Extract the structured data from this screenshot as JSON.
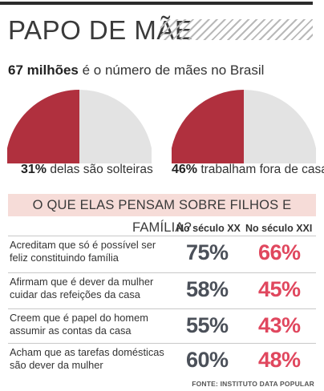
{
  "header": {
    "title": "PAPO DE MÃE"
  },
  "lead": {
    "bold": "67 milhões",
    "rest": " é o número de mães no Brasil"
  },
  "colors": {
    "accent": "#b0303e",
    "rest": "#e3e3e3",
    "xx": "#4b5059",
    "xxi": "#e0475e",
    "band": "#f6dcd8"
  },
  "pies": [
    {
      "value_bold": "31%",
      "text": " delas são solteiras",
      "percent": 31
    },
    {
      "value_bold": "46%",
      "text": " trabalham fora de casa",
      "percent": 46
    }
  ],
  "section": {
    "title": "O QUE ELAS PENSAM SOBRE FILHOS E FAMÍLIA?",
    "col_xx": "No século XX",
    "col_xxi": "No século XXI"
  },
  "rows": [
    {
      "label": "Acreditam que só é possível ser feliz constituindo família",
      "xx": "75%",
      "xxi": "66%"
    },
    {
      "label": "Afirmam que é dever da mulher cuidar das refeições da casa",
      "xx": "58%",
      "xxi": "45%"
    },
    {
      "label": "Creem que é papel do homem assumir as contas da casa",
      "xx": "55%",
      "xxi": "43%"
    },
    {
      "label": "Acham que as tarefas domésticas são dever da mulher",
      "xx": "60%",
      "xxi": "48%"
    }
  ],
  "source": "FONTE: INSTITUTO DATA POPULAR",
  "chart_data": [
    {
      "type": "pie",
      "categories": [
        "delas são solteiras",
        ""
      ],
      "values": [
        31,
        69
      ]
    },
    {
      "type": "pie",
      "categories": [
        "trabalham fora de casa",
        ""
      ],
      "values": [
        46,
        54
      ]
    },
    {
      "type": "table",
      "categories": [
        "Acreditam que só é possível ser feliz constituindo família",
        "Afirmam que é dever da mulher cuidar das refeições da casa",
        "Creem que é papel do homem assumir as contas da casa",
        "Acham que as tarefas domésticas são dever da mulher"
      ],
      "series": [
        {
          "name": "No século XX",
          "values": [
            75,
            58,
            55,
            60
          ]
        },
        {
          "name": "No século XXI",
          "values": [
            66,
            45,
            43,
            48
          ]
        }
      ]
    }
  ]
}
